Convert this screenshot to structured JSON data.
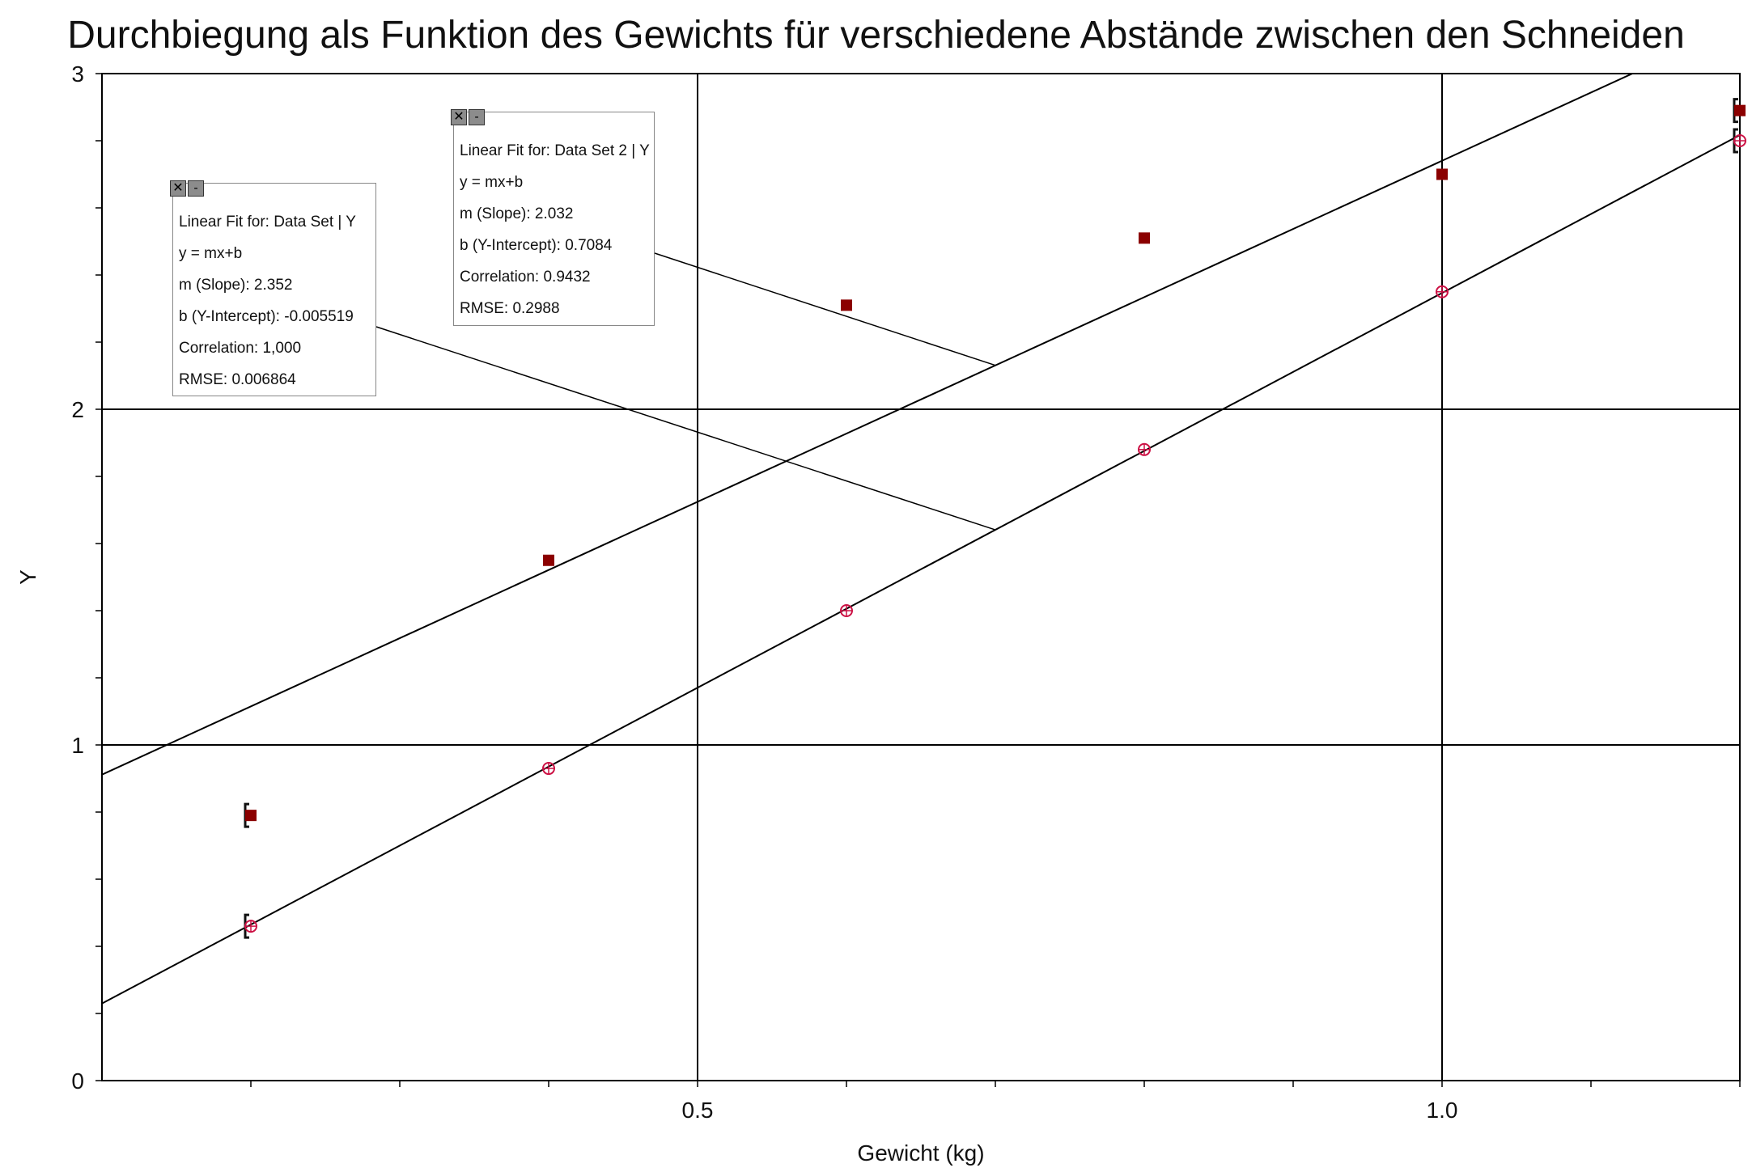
{
  "chart_data": {
    "type": "scatter",
    "title": "Durchbiegung als Funktion des Gewichts für verschiedene Abstände zwischen den Schneiden",
    "xlabel": "Gewicht (kg)",
    "ylabel": "Y",
    "xlim": [
      0.1,
      1.2
    ],
    "ylim": [
      0,
      3
    ],
    "x_ticks": [
      "0.5",
      "1.0"
    ],
    "y_ticks": [
      "0",
      "1",
      "2",
      "3"
    ],
    "grid": true,
    "series": [
      {
        "marker": "circle-cross",
        "color": "#cc1144",
        "x": [
          0.2,
          0.4,
          0.6,
          0.8,
          1.0,
          1.2
        ],
        "y": [
          0.46,
          0.93,
          1.4,
          1.88,
          2.35,
          2.8
        ],
        "fit": {
          "header": "Linear Fit for: Data Set | Y",
          "equation": "y = mx+b",
          "slope": "m (Slope): 2.352",
          "intercept": "b (Y-Intercept): -0.005519",
          "correlation": "Correlation: 1,000",
          "rmse": "RMSE: 0.006864",
          "m": 2.352,
          "b": -0.005519
        }
      },
      {
        "marker": "square",
        "color": "#8b0000",
        "x": [
          0.2,
          0.4,
          0.6,
          0.8,
          1.0,
          1.2
        ],
        "y": [
          0.79,
          1.55,
          2.31,
          2.51,
          2.7,
          2.89
        ],
        "fit": {
          "header": "Linear Fit for: Data Set 2 | Y",
          "equation": "y = mx+b",
          "slope": "m (Slope): 2.032",
          "intercept": "b (Y-Intercept): 0.7084",
          "correlation": "Correlation: 0.9432",
          "rmse": "RMSE: 0.2988",
          "m": 2.032,
          "b": 0.7084
        }
      }
    ]
  },
  "ui": {
    "close_glyph": "✕",
    "minimize_glyph": "-"
  }
}
